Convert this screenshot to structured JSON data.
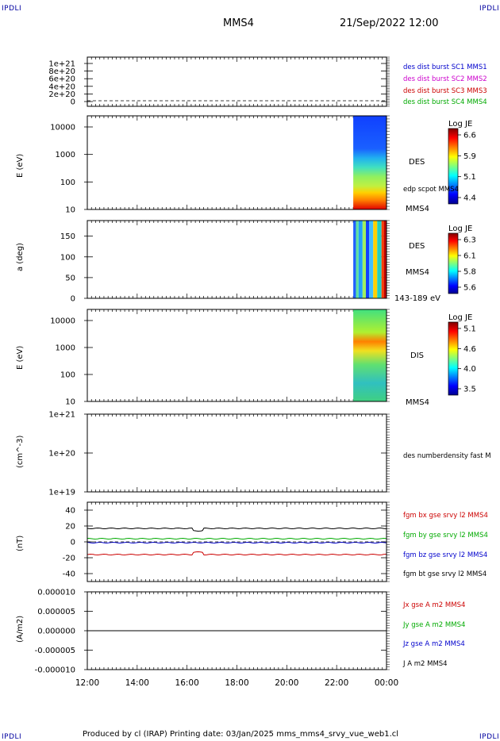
{
  "corners": {
    "tl": "IPDLI",
    "tr": "IPDLI",
    "bl": "IPDLI",
    "br": "IPDLI"
  },
  "header": {
    "spacecraft": "MMS4",
    "datetime": "21/Sep/2022 12:00"
  },
  "footer": "Produced by cl (IRAP)    Printing date: 03/Jan/2025    mms_mms4_srvy_vue_web1.cl",
  "colors": {
    "mms1": "#0000cc",
    "mms2": "#cc00cc",
    "mms3": "#cc0000",
    "mms4": "#00aa00",
    "red": "#cc0000",
    "green": "#00aa00",
    "blue": "#0000cc",
    "black": "#000000"
  },
  "chart_data": [
    {
      "type": "line",
      "ylabel": "",
      "yticks": [
        "1e+21",
        "8e+20",
        "6e+20",
        "4e+20",
        "2e+20",
        "0"
      ],
      "ylim": [
        0,
        1.1e+21
      ],
      "series": [
        {
          "name": "des dist burst SC1 MMS1",
          "values": []
        },
        {
          "name": "des dist burst SC2 MMS2",
          "values": []
        },
        {
          "name": "des dist burst SC3 MMS3",
          "values": []
        },
        {
          "name": "des dist burst SC4 MMS4",
          "values": []
        }
      ]
    },
    {
      "type": "heatmap",
      "ylabel": "E (eV)",
      "yticks": [
        "10000",
        "1000",
        "100",
        "10"
      ],
      "side": [
        "DES",
        "edp scpot MMS4",
        "MMS4"
      ],
      "colorbar": {
        "title": "Log JE",
        "ticks": [
          "6.6",
          "5.9",
          "5.1",
          "4.4"
        ]
      },
      "data_start": "22:40"
    },
    {
      "type": "heatmap",
      "ylabel": "a (deg)",
      "yticks": [
        "150",
        "100",
        "50",
        "0"
      ],
      "side": [
        "DES",
        "MMS4",
        "143-189 eV"
      ],
      "colorbar": {
        "title": "Log JE",
        "ticks": [
          "6.3",
          "6.1",
          "5.8",
          "5.6"
        ]
      },
      "data_start": "22:40"
    },
    {
      "type": "heatmap",
      "ylabel": "E (eV)",
      "yticks": [
        "10000",
        "1000",
        "100",
        "10"
      ],
      "side": [
        "DIS",
        "MMS4"
      ],
      "colorbar": {
        "title": "Log JE",
        "ticks": [
          "5.1",
          "4.6",
          "4.0",
          "3.5"
        ]
      },
      "data_start": "22:40"
    },
    {
      "type": "line",
      "ylabel": "(cm^-3)",
      "yticks": [
        "1e+21",
        "1e+20",
        "1e+19"
      ],
      "series": [
        {
          "name": "des numberdensity fast M",
          "values": []
        }
      ]
    },
    {
      "type": "line",
      "ylabel": "(nT)",
      "yticks": [
        "40",
        "20",
        "0",
        "-20",
        "-40"
      ],
      "ylim": [
        -50,
        50
      ],
      "series": [
        {
          "name": "fgm bx gse srvy l2 MMS4",
          "approx": -16
        },
        {
          "name": "fgm by gse srvy l2 MMS4",
          "approx": 4
        },
        {
          "name": "fgm bz gse srvy l2 MMS4",
          "approx": -1
        },
        {
          "name": "fgm bt gse srvy l2 MMS4",
          "approx": 17
        }
      ]
    },
    {
      "type": "line",
      "ylabel": "(A/m2)",
      "yticks": [
        "0.000010",
        "0.000005",
        "0.000000",
        "-0.000005",
        "-0.000010"
      ],
      "ylim": [
        -1e-05,
        1e-05
      ],
      "series": [
        {
          "name": "Jx gse A m2 MMS4",
          "approx": 0
        },
        {
          "name": "Jy gse A m2 MMS4",
          "approx": 0
        },
        {
          "name": "Jz gse A m2 MMS4",
          "approx": 0
        },
        {
          "name": "J A m2 MMS4",
          "approx": 0
        }
      ]
    }
  ],
  "xaxis": {
    "ticks": [
      "12:00",
      "14:00",
      "16:00",
      "18:00",
      "20:00",
      "22:00",
      "00:00"
    ]
  }
}
